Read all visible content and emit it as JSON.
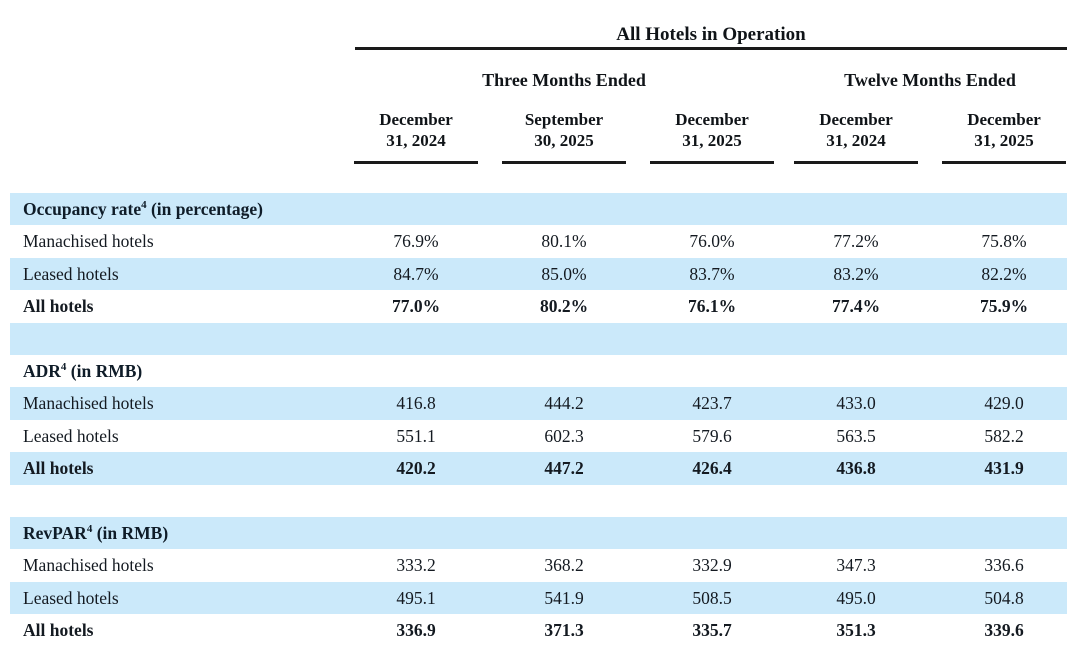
{
  "header": {
    "title": "All Hotels in Operation",
    "groups": [
      {
        "label": "Three Months Ended"
      },
      {
        "label": "Twelve Months Ended"
      }
    ],
    "columns": [
      {
        "label": "December 31, 2024",
        "line1": "December",
        "line2": "31, 2024"
      },
      {
        "label": "September 30, 2025",
        "line1": "September",
        "line2": "30, 2025"
      },
      {
        "label": "December 31, 2025",
        "line1": "December",
        "line2": "31, 2025"
      },
      {
        "label": "December 31, 2024",
        "line1": "December",
        "line2": "31, 2024"
      },
      {
        "label": "December 31, 2025",
        "line1": "December",
        "line2": "31, 2025"
      }
    ]
  },
  "colors": {
    "row_highlight": "#cbe9fa",
    "text": "#141a21",
    "rule": "#1a1a1a"
  },
  "table": {
    "rows": [
      {
        "type": "section",
        "bg": "blue",
        "label": "Occupancy rate",
        "sup": "4",
        "rest": " (in percentage)"
      },
      {
        "type": "data",
        "bg": "white",
        "label": "Manachised hotels",
        "values": [
          "76.9%",
          "80.1%",
          "76.0%",
          "77.2%",
          "75.8%"
        ]
      },
      {
        "type": "data",
        "bg": "blue",
        "label": "Leased hotels",
        "values": [
          "84.7%",
          "85.0%",
          "83.7%",
          "83.2%",
          "82.2%"
        ]
      },
      {
        "type": "total",
        "bg": "white",
        "label": "All hotels",
        "values": [
          "77.0%",
          "80.2%",
          "76.1%",
          "77.4%",
          "75.9%"
        ]
      },
      {
        "type": "spacer",
        "bg": "blue"
      },
      {
        "type": "section",
        "bg": "white",
        "label": "ADR",
        "sup": "4",
        "rest": " (in RMB)"
      },
      {
        "type": "data",
        "bg": "blue",
        "label": "Manachised hotels",
        "values": [
          "416.8",
          "444.2",
          "423.7",
          "433.0",
          "429.0"
        ]
      },
      {
        "type": "data",
        "bg": "white",
        "label": "Leased hotels",
        "values": [
          "551.1",
          "602.3",
          "579.6",
          "563.5",
          "582.2"
        ]
      },
      {
        "type": "total",
        "bg": "blue",
        "label": "All hotels",
        "values": [
          "420.2",
          "447.2",
          "426.4",
          "436.8",
          "431.9"
        ]
      },
      {
        "type": "spacer",
        "bg": "white"
      },
      {
        "type": "section",
        "bg": "blue",
        "label": "RevPAR",
        "sup": "4",
        "rest": " (in RMB)"
      },
      {
        "type": "data",
        "bg": "white",
        "label": "Manachised hotels",
        "values": [
          "333.2",
          "368.2",
          "332.9",
          "347.3",
          "336.6"
        ]
      },
      {
        "type": "data",
        "bg": "blue",
        "label": "Leased hotels",
        "values": [
          "495.1",
          "541.9",
          "508.5",
          "495.0",
          "504.8"
        ]
      },
      {
        "type": "total",
        "bg": "white",
        "label": "All hotels",
        "values": [
          "336.9",
          "371.3",
          "335.7",
          "351.3",
          "339.6"
        ]
      }
    ]
  }
}
